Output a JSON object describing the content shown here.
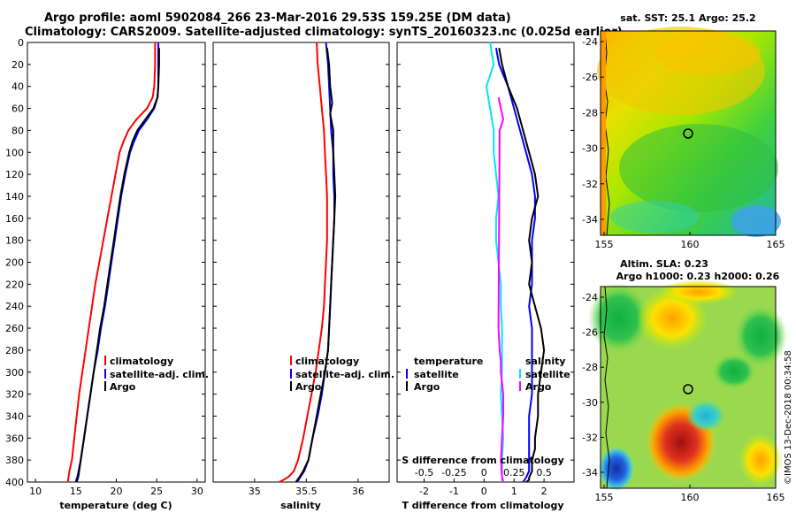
{
  "header": {
    "line1": "Argo profile: aoml 5902084_266 23-Mar-2016 29.53S 159.25E (DM data)",
    "line2": "Climatology: CARS2009. Satellite-adjusted climatology: synTS_20160323.nc (0.025d earlier)"
  },
  "colors": {
    "climatology": "#ff0000",
    "satellite": "#0000ff",
    "argo": "#000000",
    "satellite_salinity": "#00e5ff",
    "argo_salinity": "#ff00ff"
  },
  "chart_data": [
    {
      "id": "temperature",
      "type": "line",
      "xlabel": "temperature (deg C)",
      "ylabel": "depth",
      "xlim": [
        9,
        31
      ],
      "ylim": [
        0,
        400
      ],
      "xticks": [
        10,
        15,
        20,
        25,
        30
      ],
      "yticks": [
        0,
        20,
        40,
        60,
        80,
        100,
        120,
        140,
        160,
        180,
        200,
        220,
        240,
        260,
        280,
        300,
        320,
        340,
        360,
        380,
        400
      ],
      "legend": [
        "climatology",
        "satellite-adj. clim.",
        "Argo"
      ],
      "series": [
        {
          "name": "climatology",
          "color": "#ff0000",
          "x": [
            24.8,
            24.8,
            24.7,
            24.5,
            23.8,
            22.5,
            21.5,
            20.9,
            20.4,
            19.9,
            19.4,
            18.9,
            18.4,
            17.9,
            17.4,
            17.0,
            16.6,
            16.2,
            15.8,
            15.4,
            15.1,
            14.8,
            14.5,
            14.2,
            14.0
          ],
          "depth": [
            0,
            20,
            40,
            50,
            60,
            70,
            80,
            90,
            100,
            120,
            140,
            160,
            180,
            200,
            220,
            240,
            260,
            280,
            300,
            320,
            340,
            360,
            380,
            390,
            400
          ]
        },
        {
          "name": "satellite-adj. clim.",
          "color": "#0000ff",
          "x": [
            25.2,
            25.2,
            25.2,
            25.1,
            24.7,
            23.8,
            22.8,
            22.2,
            21.7,
            21.1,
            20.6,
            20.2,
            19.8,
            19.4,
            19.0,
            18.6,
            18.1,
            17.7,
            17.2,
            16.8,
            16.4,
            16.0,
            15.6,
            15.2,
            15.0
          ],
          "depth": [
            0,
            20,
            40,
            50,
            60,
            70,
            80,
            90,
            100,
            120,
            140,
            160,
            180,
            200,
            220,
            240,
            260,
            280,
            300,
            320,
            340,
            360,
            380,
            395,
            400
          ]
        },
        {
          "name": "Argo",
          "color": "#000000",
          "x": [
            25.3,
            25.3,
            25.2,
            25.1,
            24.6,
            23.6,
            22.6,
            22.0,
            21.6,
            21.0,
            20.5,
            20.1,
            19.7,
            19.3,
            18.9,
            18.5,
            18.0,
            17.6,
            17.2,
            16.8,
            16.4,
            16.0,
            15.6,
            15.3,
            15.1
          ],
          "depth": [
            5,
            20,
            40,
            50,
            60,
            70,
            80,
            90,
            100,
            120,
            140,
            160,
            180,
            200,
            220,
            240,
            260,
            280,
            300,
            320,
            340,
            360,
            380,
            395,
            400
          ]
        }
      ]
    },
    {
      "id": "salinity",
      "type": "line",
      "xlabel": "salinity",
      "ylabel": "depth",
      "xlim": [
        34.6,
        36.3
      ],
      "ylim": [
        0,
        400
      ],
      "xticks": [
        35,
        35.5,
        36
      ],
      "xticklabels": [
        "35",
        "35.5",
        "36"
      ],
      "legend": [
        "climatology",
        "satellite-adj. clim.",
        "Argo"
      ],
      "series": [
        {
          "name": "climatology",
          "color": "#ff0000",
          "x": [
            35.6,
            35.61,
            35.63,
            35.65,
            35.67,
            35.68,
            35.69,
            35.7,
            35.7,
            35.7,
            35.69,
            35.68,
            35.67,
            35.65,
            35.62,
            35.59,
            35.55,
            35.51,
            35.47,
            35.42,
            35.38,
            35.33,
            35.28,
            35.24
          ],
          "depth": [
            0,
            20,
            40,
            60,
            80,
            100,
            120,
            140,
            160,
            180,
            200,
            220,
            240,
            260,
            280,
            300,
            320,
            340,
            360,
            380,
            390,
            395,
            398,
            400
          ]
        },
        {
          "name": "satellite-adj. clim.",
          "color": "#0000ff",
          "x": [
            35.69,
            35.71,
            35.72,
            35.73,
            35.74,
            35.76,
            35.76,
            35.77,
            35.77,
            35.76,
            35.75,
            35.74,
            35.73,
            35.72,
            35.71,
            35.68,
            35.65,
            35.61,
            35.56,
            35.52,
            35.48,
            35.44,
            35.41
          ],
          "depth": [
            0,
            20,
            40,
            60,
            80,
            100,
            120,
            140,
            160,
            180,
            200,
            220,
            240,
            260,
            280,
            300,
            320,
            340,
            360,
            380,
            390,
            396,
            400
          ]
        },
        {
          "name": "Argo",
          "color": "#000000",
          "x": [
            35.7,
            35.72,
            35.73,
            35.75,
            35.73,
            35.76,
            35.76,
            35.77,
            35.78,
            35.77,
            35.76,
            35.75,
            35.74,
            35.73,
            35.72,
            35.71,
            35.68,
            35.64,
            35.6,
            35.56,
            35.52,
            35.47,
            35.43,
            35.4
          ],
          "depth": [
            5,
            20,
            40,
            55,
            65,
            80,
            100,
            120,
            140,
            160,
            180,
            200,
            220,
            240,
            260,
            280,
            300,
            320,
            340,
            360,
            380,
            390,
            396,
            400
          ]
        }
      ]
    },
    {
      "id": "difference",
      "type": "line",
      "xlabel": "T difference from climatology",
      "xlabel_top": "S difference from climatology",
      "ylabel": "depth",
      "xlim": [
        -2.9,
        3.0
      ],
      "ylim": [
        0,
        400
      ],
      "xticks": [
        -2,
        -1,
        0,
        1,
        2
      ],
      "xticks_top": [
        -0.5,
        -0.25,
        0,
        0.25,
        0.5
      ],
      "xticklabels_top": [
        "-0.5",
        "-0.25",
        "0",
        "0.25",
        "0.5"
      ],
      "legend_temperature": {
        "header": "temperature",
        "items": [
          "satellite",
          "Argo"
        ]
      },
      "legend_salinity": {
        "header": "salinity",
        "items": [
          "satellite",
          "Argo"
        ]
      },
      "series": [
        {
          "name": "T satellite",
          "color": "#0000ff",
          "x": [
            0.4,
            0.5,
            0.8,
            1.0,
            1.2,
            1.4,
            1.6,
            1.7,
            1.7,
            1.6,
            1.6,
            1.6,
            1.5,
            1.6,
            1.6,
            1.6,
            1.6,
            1.5,
            1.5,
            1.5,
            1.5,
            1.4,
            1.3
          ],
          "depth": [
            5,
            20,
            40,
            60,
            80,
            100,
            120,
            140,
            160,
            180,
            200,
            220,
            240,
            260,
            280,
            300,
            320,
            340,
            360,
            380,
            390,
            396,
            400
          ]
        },
        {
          "name": "T Argo",
          "color": "#000000",
          "x": [
            0.5,
            0.6,
            0.8,
            1.1,
            1.3,
            1.5,
            1.7,
            1.8,
            1.6,
            1.5,
            1.6,
            1.5,
            1.7,
            1.9,
            2.0,
            1.9,
            1.8,
            1.8,
            1.7,
            1.7,
            1.6,
            1.6,
            1.5,
            1.5,
            1.4
          ],
          "depth": [
            5,
            20,
            40,
            60,
            80,
            100,
            120,
            140,
            160,
            180,
            200,
            220,
            240,
            260,
            280,
            300,
            320,
            340,
            360,
            370,
            380,
            390,
            396,
            398,
            400
          ]
        },
        {
          "name": "S satellite",
          "color": "#00e5ff",
          "x": [
            0.05,
            0.08,
            0.02,
            0.05,
            0.08,
            0.08,
            0.1,
            0.12,
            0.1,
            0.1,
            0.12,
            0.14,
            0.14,
            0.15,
            0.15,
            0.15,
            0.14,
            0.15,
            0.16,
            0.15,
            0.15,
            0.15
          ],
          "depth": [
            0,
            20,
            40,
            60,
            80,
            100,
            120,
            140,
            160,
            180,
            200,
            220,
            240,
            260,
            280,
            300,
            320,
            340,
            360,
            380,
            390,
            400
          ]
        },
        {
          "name": "S Argo",
          "color": "#ff00ff",
          "x": [
            0.12,
            0.14,
            0.16,
            0.13,
            0.12,
            0.13,
            0.14,
            0.14,
            0.15,
            0.16,
            0.16,
            0.15,
            0.14,
            0.15,
            0.16
          ],
          "depth": [
            50,
            60,
            70,
            80,
            260,
            280,
            290,
            300,
            310,
            320,
            340,
            360,
            380,
            395,
            400
          ]
        }
      ]
    }
  ],
  "maps": {
    "sst": {
      "title": "sat. SST: 25.1 Argo: 25.2",
      "xticks": [
        "155",
        "160",
        "165"
      ],
      "yticks": [
        "-24",
        "-26",
        "-28",
        "-30",
        "-32",
        "-34"
      ]
    },
    "sla": {
      "title1": "Altim. SLA: 0.23",
      "title2": "Argo h1000: 0.23 h2000: 0.26",
      "xticks": [
        "155",
        "160",
        "165"
      ],
      "yticks": [
        "-24",
        "-26",
        "-28",
        "-30",
        "-32",
        "-34"
      ]
    }
  },
  "footer": {
    "credit": "©IMOS 13-Dec-2018 00:34:58"
  }
}
